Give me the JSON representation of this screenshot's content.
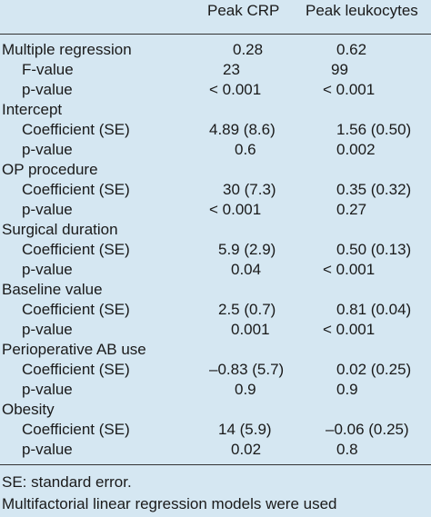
{
  "header": {
    "col1": "Peak CRP",
    "col2": "Peak leukocytes"
  },
  "sections": [
    {
      "label": "Multiple regression",
      "v1": "0.28",
      "v2": "0.62",
      "rows": [
        {
          "label": "F-value",
          "v1": "23",
          "v2": "99"
        },
        {
          "label": "p-value",
          "v1": "< 0.001",
          "v2": "< 0.001"
        }
      ]
    },
    {
      "label": "Intercept",
      "rows": [
        {
          "label": "Coefficient (SE)",
          "v1": "4.89 (8.6)",
          "v2": "1.56 (0.50)"
        },
        {
          "label": "p-value",
          "v1": "0.6",
          "v2": "0.002"
        }
      ]
    },
    {
      "label": "OP procedure",
      "rows": [
        {
          "label": "Coefficient (SE)",
          "v1": "30 (7.3)",
          "v2": "0.35 (0.32)"
        },
        {
          "label": "p-value",
          "v1": "< 0.001",
          "v2": "0.27"
        }
      ]
    },
    {
      "label": "Surgical duration",
      "rows": [
        {
          "label": "Coefficient (SE)",
          "v1": "5.9 (2.9)",
          "v2": "0.50 (0.13)"
        },
        {
          "label": "p-value",
          "v1": "0.04",
          "v2": "< 0.001"
        }
      ]
    },
    {
      "label": "Baseline value",
      "rows": [
        {
          "label": "Coefficient (SE)",
          "v1": "2.5 (0.7)",
          "v2": "0.81 (0.04)"
        },
        {
          "label": "p-value",
          "v1": "0.001",
          "v2": "< 0.001"
        }
      ]
    },
    {
      "label": "Perioperative AB use",
      "rows": [
        {
          "label": "Coefficient (SE)",
          "v1": "–0.83 (5.7)",
          "v2": "0.02 (0.25)"
        },
        {
          "label": "p-value",
          "v1": "0.9",
          "v2": "0.9"
        }
      ]
    },
    {
      "label": "Obesity",
      "rows": [
        {
          "label": "Coefficient (SE)",
          "v1": "14 (5.9)",
          "v2": "–0.06 (0.25)"
        },
        {
          "label": "p-value",
          "v1": "0.02",
          "v2": "0.8"
        }
      ]
    }
  ],
  "footnotes": {
    "line1": "SE: standard error.",
    "line2": "Multifactorial linear regression models were used"
  }
}
